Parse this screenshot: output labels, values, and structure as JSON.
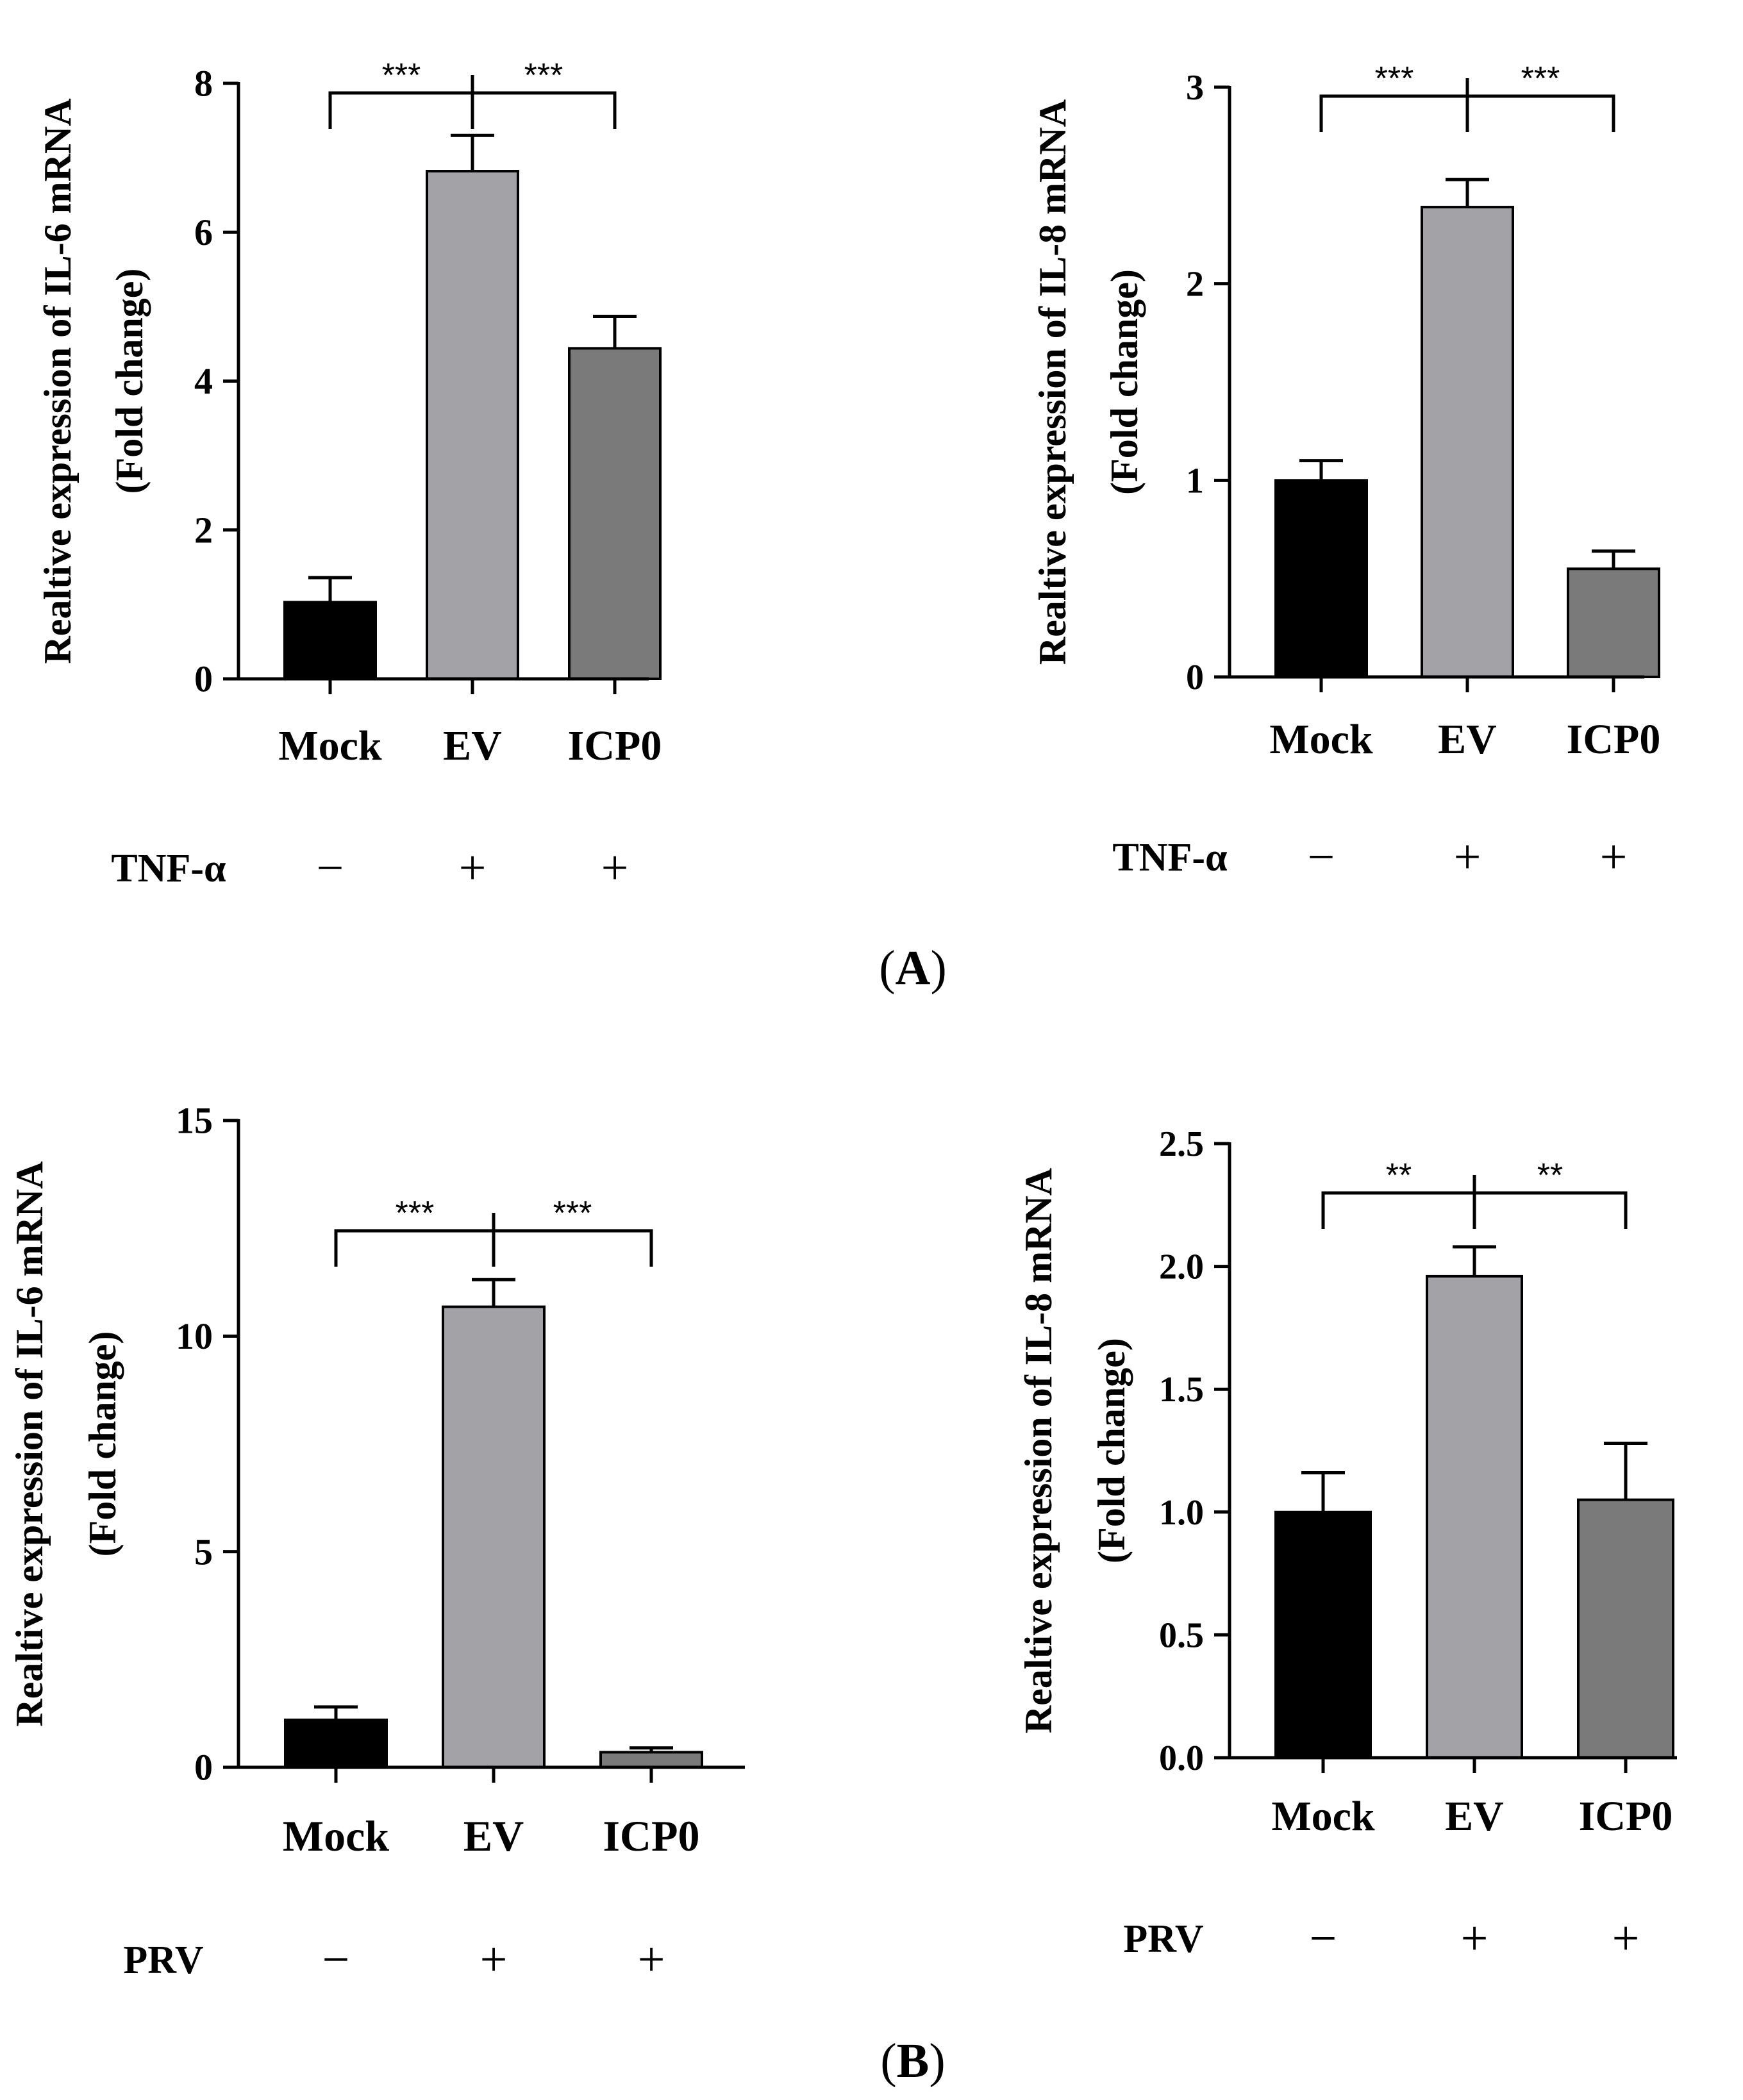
{
  "panels": [
    {
      "label_open": "(",
      "label_letter": "A",
      "label_close": ")"
    },
    {
      "label_open": "(",
      "label_letter": "B",
      "label_close": ")"
    }
  ],
  "chart_data": [
    {
      "type": "bar",
      "panel": "A",
      "title": "",
      "ylabel_line1": "Realtive expression of IL-6 mRNA",
      "ylabel_line2": "(Fold change)",
      "categories": [
        "Mock",
        "EV",
        "ICP0"
      ],
      "values": [
        1.03,
        6.82,
        4.44
      ],
      "errors": [
        0.33,
        0.48,
        0.43
      ],
      "bar_colors": [
        "#000000",
        "#a3a3a7",
        "#7a7a7a"
      ],
      "ylim": [
        0,
        8
      ],
      "yticks": [
        0,
        2,
        4,
        6,
        8
      ],
      "ytick_labels": [
        "0",
        "2",
        "4",
        "6",
        "8"
      ],
      "treatment": {
        "name": "TNF-α",
        "signs": [
          "−",
          "+",
          "+"
        ]
      },
      "significance": {
        "left": "***",
        "right": "***"
      }
    },
    {
      "type": "bar",
      "panel": "A",
      "title": "",
      "ylabel_line1": "Realtive expression of IL-8 mRNA",
      "ylabel_line2": "(Fold change)",
      "categories": [
        "Mock",
        "EV",
        "ICP0"
      ],
      "values": [
        1.0,
        2.39,
        0.55
      ],
      "errors": [
        0.1,
        0.14,
        0.09
      ],
      "bar_colors": [
        "#000000",
        "#a3a3a7",
        "#7a7a7a"
      ],
      "ylim": [
        0,
        3
      ],
      "yticks": [
        0,
        1,
        2,
        3
      ],
      "ytick_labels": [
        "0",
        "1",
        "2",
        "3"
      ],
      "treatment": {
        "name": "TNF-α",
        "signs": [
          "−",
          "+",
          "+"
        ]
      },
      "significance": {
        "left": "***",
        "right": "***"
      }
    },
    {
      "type": "bar",
      "panel": "B",
      "title": "",
      "ylabel_line1": "Realtive expression of IL-6 mRNA",
      "ylabel_line2": "(Fold change)",
      "categories": [
        "Mock",
        "EV",
        "ICP0"
      ],
      "values": [
        1.1,
        10.68,
        0.35
      ],
      "errors": [
        0.3,
        0.63,
        0.1
      ],
      "bar_colors": [
        "#000000",
        "#a3a3a7",
        "#7a7a7a"
      ],
      "ylim": [
        0,
        15
      ],
      "yticks": [
        0,
        5,
        10,
        15
      ],
      "ytick_labels": [
        "0",
        "5",
        "10",
        "15"
      ],
      "treatment": {
        "name": "PRV",
        "signs": [
          "−",
          "+",
          "+"
        ]
      },
      "significance": {
        "left": "***",
        "right": "***"
      }
    },
    {
      "type": "bar",
      "panel": "B",
      "title": "",
      "ylabel_line1": "Realtive expression of IL-8 mRNA",
      "ylabel_line2": "(Fold change)",
      "categories": [
        "Mock",
        "EV",
        "ICP0"
      ],
      "values": [
        1.0,
        1.96,
        1.05
      ],
      "errors": [
        0.16,
        0.12,
        0.23
      ],
      "bar_colors": [
        "#000000",
        "#a3a3a7",
        "#7a7a7a"
      ],
      "ylim": [
        0,
        2.5
      ],
      "yticks": [
        0,
        0.5,
        1,
        1.5,
        2,
        2.5
      ],
      "ytick_labels": [
        "0.0",
        "0.5",
        "1.0",
        "1.5",
        "2.0",
        "2.5"
      ],
      "treatment": {
        "name": "PRV",
        "signs": [
          "−",
          "+",
          "+"
        ]
      },
      "significance": {
        "left": "**",
        "right": "**"
      }
    }
  ]
}
